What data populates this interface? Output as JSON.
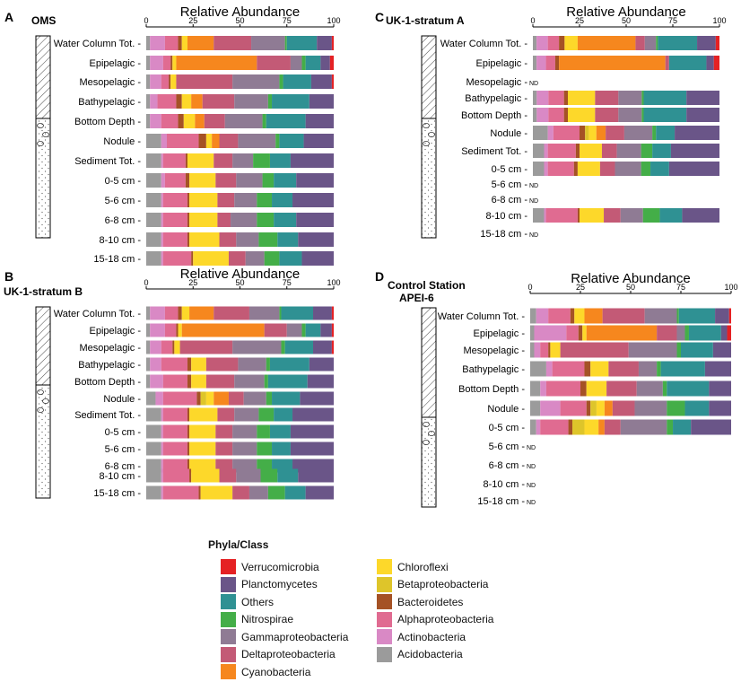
{
  "figure_caption": "",
  "legend": {
    "title": "Phyla/Class",
    "col1": [
      "Verrucomicrobia",
      "Planctomycetes",
      "Others",
      "Nitrospirae",
      "Gammaproteobacteria",
      "Deltaproteobacteria",
      "Cyanobacteria"
    ],
    "col2": [
      "Chloroflexi",
      "Betaproteobacteria",
      "Bacteroidetes",
      "Alphaproteobacteria",
      "Actinobacteria",
      "Acidobacteria"
    ]
  },
  "taxa_colors": {
    "Acidobacteria": "#9b9b9b",
    "Actinobacteria": "#d989c5",
    "Alphaproteobacteria": "#e06b91",
    "Bacteroidetes": "#a55225",
    "Betaproteobacteria": "#dec52a",
    "Chloroflexi": "#fdd82a",
    "Cyanobacteria": "#f6871e",
    "Deltaproteobacteria": "#c35a76",
    "Gammaproteobacteria": "#8f7b94",
    "Nitrospirae": "#44ae48",
    "Others": "#2f9193",
    "Planctomycetes": "#6a5588",
    "Verrucomicrobia": "#e52124"
  },
  "nd_label": "ND",
  "chart_data": [
    {
      "type": "bar",
      "stacked": true,
      "orientation": "horizontal",
      "panel": "A",
      "title": "OMS",
      "xlabel": "Relative Abundance",
      "xlim": [
        0,
        100
      ],
      "xticks": [
        0,
        25,
        50,
        75,
        100
      ],
      "taxa_order": [
        "Acidobacteria",
        "Actinobacteria",
        "Alphaproteobacteria",
        "Bacteroidetes",
        "Betaproteobacteria",
        "Chloroflexi",
        "Cyanobacteria",
        "Deltaproteobacteria",
        "Gammaproteobacteria",
        "Nitrospirae",
        "Others",
        "Planctomycetes",
        "Verrucomicrobia"
      ],
      "categories": [
        "Water Column Tot.",
        "Epipelagic",
        "Mesopelagic",
        "Bathypelagic",
        "Bottom Depth",
        "Nodule",
        "Sediment Tot.",
        "0-5 cm",
        "5-6 cm",
        "6-8 cm",
        "8-10 cm",
        "15-18 cm"
      ],
      "nd": [],
      "values": [
        [
          2,
          8,
          7,
          2,
          0,
          3,
          14,
          20,
          18,
          1,
          16,
          8,
          1
        ],
        [
          2,
          7,
          4,
          1,
          0,
          2,
          43,
          18,
          6,
          2,
          8,
          5,
          2
        ],
        [
          2,
          6,
          4,
          1,
          0,
          3,
          0,
          30,
          25,
          2,
          15,
          11,
          1
        ],
        [
          2,
          4,
          10,
          3,
          0,
          5,
          6,
          17,
          18,
          2,
          20,
          13,
          0
        ],
        [
          2,
          6,
          9,
          3,
          0,
          6,
          5,
          11,
          20,
          2,
          21,
          15,
          0
        ],
        [
          8,
          3,
          17,
          4,
          0,
          3,
          4,
          10,
          20,
          2,
          13,
          16,
          0
        ],
        [
          8,
          1,
          12,
          1,
          0,
          14,
          0,
          10,
          11,
          9,
          11,
          23,
          0
        ],
        [
          8,
          2,
          11,
          2,
          0,
          14,
          0,
          11,
          14,
          6,
          12,
          20,
          0
        ],
        [
          8,
          1,
          13,
          1,
          0,
          15,
          0,
          9,
          12,
          8,
          11,
          22,
          0
        ],
        [
          8,
          1,
          13,
          1,
          0,
          15,
          0,
          7,
          14,
          9,
          12,
          20,
          0
        ],
        [
          8,
          1,
          13,
          1,
          0,
          16,
          0,
          9,
          12,
          10,
          11,
          19,
          0
        ],
        [
          8,
          1,
          15,
          1,
          0,
          19,
          0,
          9,
          10,
          8,
          12,
          17,
          0
        ]
      ]
    },
    {
      "type": "bar",
      "stacked": true,
      "orientation": "horizontal",
      "panel": "B",
      "title": "UK-1-stratum B",
      "xlabel": "Relative Abundance",
      "xlim": [
        0,
        100
      ],
      "xticks": [
        0,
        25,
        50,
        75,
        100
      ],
      "taxa_order": [
        "Acidobacteria",
        "Actinobacteria",
        "Alphaproteobacteria",
        "Bacteroidetes",
        "Betaproteobacteria",
        "Chloroflexi",
        "Cyanobacteria",
        "Deltaproteobacteria",
        "Gammaproteobacteria",
        "Nitrospirae",
        "Others",
        "Planctomycetes",
        "Verrucomicrobia"
      ],
      "categories": [
        "Water Column Tot.",
        "Epipelagic",
        "Mesopelagic",
        "Bathypelagic",
        "Bottom Depth",
        "Nodule",
        "Sediment Tot.",
        "0-5 cm",
        "5-6 cm",
        "6-8 cm",
        "8-10 cm",
        "15-18 cm"
      ],
      "nd": [],
      "values": [
        [
          2,
          8,
          7,
          2,
          0,
          4,
          13,
          19,
          16,
          1,
          17,
          10,
          1
        ],
        [
          2,
          8,
          6,
          1,
          0,
          2,
          44,
          12,
          8,
          2,
          8,
          6,
          1
        ],
        [
          2,
          6,
          6,
          1,
          0,
          3,
          0,
          28,
          26,
          2,
          15,
          10,
          1
        ],
        [
          2,
          6,
          14,
          2,
          0,
          8,
          0,
          17,
          15,
          2,
          21,
          13,
          0
        ],
        [
          2,
          7,
          13,
          2,
          0,
          8,
          0,
          15,
          16,
          2,
          21,
          14,
          0
        ],
        [
          5,
          4,
          18,
          2,
          3,
          4,
          8,
          8,
          12,
          3,
          15,
          18,
          0
        ],
        [
          8,
          1,
          13,
          1,
          0,
          15,
          0,
          9,
          13,
          8,
          10,
          22,
          0
        ],
        [
          8,
          1,
          13,
          1,
          0,
          14,
          0,
          9,
          13,
          7,
          11,
          23,
          0
        ],
        [
          8,
          1,
          13,
          1,
          0,
          14,
          0,
          9,
          13,
          8,
          10,
          23,
          0
        ],
        [
          8,
          1,
          13,
          1,
          0,
          14,
          0,
          9,
          13,
          8,
          11,
          22,
          0
        ],
        [
          8,
          1,
          14,
          1,
          0,
          15,
          0,
          9,
          13,
          9,
          11,
          19,
          0
        ],
        [
          8,
          1,
          19,
          1,
          0,
          17,
          0,
          9,
          10,
          9,
          11,
          15,
          0
        ]
      ]
    },
    {
      "type": "bar",
      "stacked": true,
      "orientation": "horizontal",
      "panel": "C",
      "title": "UK-1-stratum A",
      "xlabel": "Relative Abundance",
      "xlim": [
        0,
        100
      ],
      "xticks": [
        0,
        25,
        50,
        75,
        100
      ],
      "taxa_order": [
        "Acidobacteria",
        "Actinobacteria",
        "Alphaproteobacteria",
        "Bacteroidetes",
        "Betaproteobacteria",
        "Chloroflexi",
        "Cyanobacteria",
        "Deltaproteobacteria",
        "Gammaproteobacteria",
        "Nitrospirae",
        "Others",
        "Planctomycetes",
        "Verrucomicrobia"
      ],
      "categories": [
        "Water Column Tot.",
        "Epipelagic",
        "Mesopelagic",
        "Bathypelagic",
        "Bottom Depth",
        "Nodule",
        "Sediment Tot.",
        "0-5 cm",
        "5-6 cm",
        "6-8 cm",
        "8-10 cm",
        "15-18 cm"
      ],
      "nd": [
        "Mesopelagic",
        "5-6 cm",
        "6-8 cm",
        "15-18 cm"
      ],
      "values": [
        [
          2,
          6,
          6,
          3,
          0,
          7,
          31,
          5,
          6,
          1,
          21,
          10,
          2
        ],
        [
          2,
          5,
          5,
          2,
          0,
          0,
          57,
          2,
          0,
          0,
          20,
          4,
          3
        ],
        [
          0,
          0,
          0,
          0,
          0,
          0,
          0,
          0,
          0,
          0,
          0,
          0,
          0
        ],
        [
          2,
          6,
          8,
          2,
          0,
          14,
          0,
          12,
          12,
          1,
          22,
          17,
          0
        ],
        [
          2,
          6,
          8,
          2,
          0,
          14,
          0,
          12,
          12,
          1,
          22,
          17,
          0
        ],
        [
          8,
          3,
          14,
          3,
          2,
          4,
          5,
          10,
          15,
          2,
          10,
          24,
          0
        ],
        [
          6,
          2,
          15,
          2,
          0,
          12,
          0,
          8,
          13,
          6,
          10,
          26,
          0
        ],
        [
          6,
          2,
          14,
          2,
          0,
          12,
          0,
          8,
          14,
          5,
          10,
          27,
          0
        ],
        [
          0,
          0,
          0,
          0,
          0,
          0,
          0,
          0,
          0,
          0,
          0,
          0,
          0
        ],
        [
          0,
          0,
          0,
          0,
          0,
          0,
          0,
          0,
          0,
          0,
          0,
          0,
          0
        ],
        [
          6,
          1,
          17,
          1,
          0,
          13,
          0,
          9,
          12,
          9,
          12,
          20,
          0
        ],
        [
          0,
          0,
          0,
          0,
          0,
          0,
          0,
          0,
          0,
          0,
          0,
          0,
          0
        ]
      ]
    },
    {
      "type": "bar",
      "stacked": true,
      "orientation": "horizontal",
      "panel": "D",
      "title": "Control Station APEI-6",
      "xlabel": "Relative Abundance",
      "xlim": [
        0,
        100
      ],
      "xticks": [
        0,
        25,
        50,
        75,
        100
      ],
      "taxa_order": [
        "Acidobacteria",
        "Actinobacteria",
        "Alphaproteobacteria",
        "Bacteroidetes",
        "Betaproteobacteria",
        "Chloroflexi",
        "Cyanobacteria",
        "Deltaproteobacteria",
        "Gammaproteobacteria",
        "Nitrospirae",
        "Others",
        "Planctomycetes",
        "Verrucomicrobia"
      ],
      "categories": [
        "Water Column Tot.",
        "Epipelagic",
        "Mesopelagic",
        "Bathypelagic",
        "Bottom Depth",
        "Nodule",
        "0-5 cm",
        "5-6 cm",
        "6-8 cm",
        "8-10 cm",
        "15-18 cm"
      ],
      "nd": [
        "5-6 cm",
        "6-8 cm",
        "8-10 cm",
        "15-18 cm"
      ],
      "values": [
        [
          3,
          6,
          11,
          2,
          0,
          5,
          9,
          21,
          16,
          1,
          18,
          7,
          1
        ],
        [
          2,
          16,
          6,
          2,
          0,
          2,
          35,
          10,
          4,
          2,
          16,
          3,
          2
        ],
        [
          2,
          3,
          4,
          1,
          0,
          5,
          0,
          34,
          24,
          2,
          16,
          9,
          0
        ],
        [
          8,
          3,
          16,
          3,
          0,
          9,
          0,
          15,
          9,
          2,
          22,
          13,
          0
        ],
        [
          5,
          3,
          17,
          3,
          0,
          10,
          0,
          15,
          13,
          2,
          21,
          11,
          0
        ],
        [
          5,
          10,
          13,
          2,
          3,
          4,
          4,
          11,
          16,
          9,
          12,
          11,
          0
        ],
        [
          3,
          2,
          14,
          2,
          6,
          7,
          3,
          8,
          23,
          3,
          9,
          20,
          0
        ],
        [
          0,
          0,
          0,
          0,
          0,
          0,
          0,
          0,
          0,
          0,
          0,
          0,
          0
        ],
        [
          0,
          0,
          0,
          0,
          0,
          0,
          0,
          0,
          0,
          0,
          0,
          0,
          0
        ],
        [
          0,
          0,
          0,
          0,
          0,
          0,
          0,
          0,
          0,
          0,
          0,
          0,
          0
        ],
        [
          0,
          0,
          0,
          0,
          0,
          0,
          0,
          0,
          0,
          0,
          0,
          0,
          0
        ]
      ]
    }
  ]
}
